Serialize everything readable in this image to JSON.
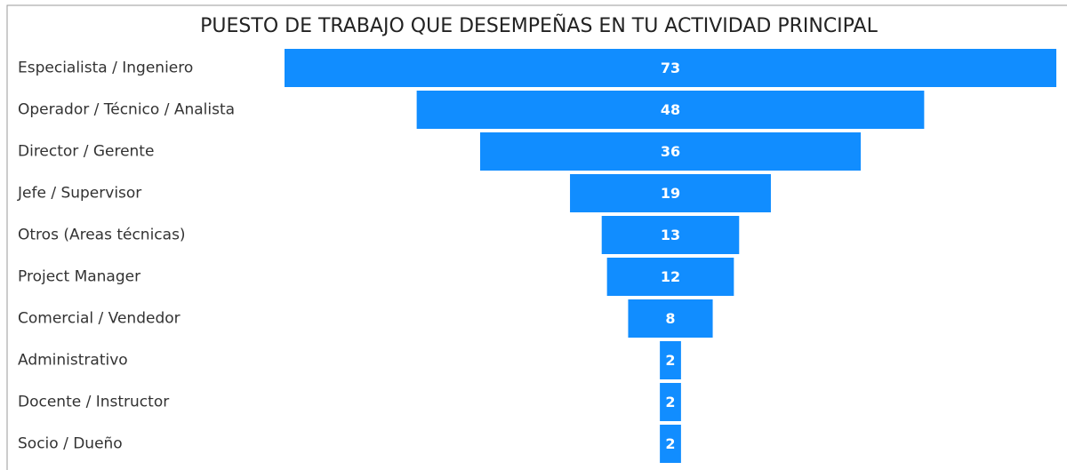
{
  "chart_data": {
    "type": "funnel",
    "title": "PUESTO DE TRABAJO QUE DESEMPEÑAS EN TU ACTIVIDAD PRINCIPAL",
    "categories": [
      "Especialista / Ingeniero",
      "Operador / Técnico / Analista",
      "Director / Gerente",
      "Jefe / Supervisor",
      "Otros (Areas técnicas)",
      "Project Manager",
      "Comercial / Vendedor",
      "Administrativo",
      "Docente / Instructor",
      "Socio / Dueño"
    ],
    "values": [
      73,
      48,
      36,
      19,
      13,
      12,
      8,
      2,
      2,
      2
    ],
    "color": "#118dff"
  }
}
